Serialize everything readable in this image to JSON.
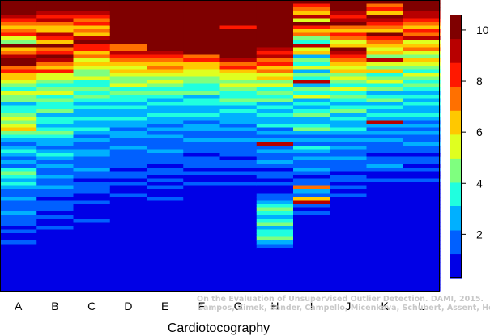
{
  "chart_data": {
    "type": "heatmap",
    "xlabel": "Cardiotocography",
    "categories": [
      "A",
      "B",
      "C",
      "D",
      "E",
      "F",
      "G",
      "H",
      "I",
      "J",
      "K",
      "L"
    ],
    "colorbar": {
      "min": 0.3,
      "max": 10.6,
      "ticks": [
        2,
        4,
        6,
        8,
        10
      ],
      "levels": [
        "#00007f",
        "#0000e6",
        "#0060ff",
        "#00b0ff",
        "#20ffdf",
        "#7fff7f",
        "#dfff20",
        "#ffc800",
        "#ff7000",
        "#ff1800",
        "#b80000",
        "#7f0000"
      ]
    },
    "n_rows": 80,
    "columns_ranks_top_to_bottom": [
      [
        10,
        10,
        10,
        10,
        9,
        8,
        7,
        6,
        7,
        8,
        5,
        4,
        10,
        6,
        7,
        9,
        10,
        10,
        7,
        8,
        6,
        6,
        5,
        4,
        3,
        5,
        4,
        4,
        2,
        3,
        3,
        4,
        5,
        4,
        5,
        6,
        4,
        3,
        2,
        1,
        2,
        3,
        2,
        1,
        2,
        1,
        3,
        4,
        3,
        2,
        3,
        2,
        1,
        1,
        2,
        1,
        1,
        1,
        2,
        1,
        1,
        1,
        0,
        1,
        0,
        0,
        1,
        0,
        0,
        0,
        0,
        0,
        0,
        0,
        0,
        0,
        0,
        0,
        0,
        0
      ],
      [
        10,
        10,
        10,
        9,
        8,
        9,
        7,
        6,
        6,
        9,
        8,
        6,
        10,
        7,
        8,
        10,
        9,
        7,
        6,
        8,
        5,
        5,
        4,
        3,
        4,
        5,
        3,
        4,
        3,
        3,
        4,
        2,
        3,
        3,
        2,
        3,
        4,
        3,
        2,
        2,
        1,
        2,
        3,
        2,
        1,
        2,
        1,
        1,
        2,
        1,
        1,
        2,
        1,
        1,
        0,
        1,
        1,
        1,
        0,
        1,
        0,
        0,
        1,
        0,
        0,
        0,
        0,
        0,
        0,
        0,
        0,
        0,
        0,
        0,
        0,
        0,
        0,
        0,
        0,
        0
      ],
      [
        10,
        10,
        10,
        9,
        8,
        7,
        8,
        6,
        7,
        6,
        9,
        10,
        8,
        8,
        6,
        7,
        5,
        6,
        5,
        4,
        4,
        5,
        3,
        3,
        4,
        3,
        4,
        3,
        2,
        3,
        2,
        2,
        3,
        2,
        2,
        3,
        2,
        1,
        2,
        1,
        1,
        2,
        2,
        1,
        1,
        1,
        2,
        1,
        1,
        0,
        1,
        1,
        1,
        0,
        0,
        1,
        0,
        0,
        0,
        0,
        1,
        0,
        0,
        0,
        0,
        0,
        0,
        0,
        0,
        0,
        0,
        0,
        0,
        0,
        0,
        0,
        0,
        0,
        0,
        0
      ],
      [
        10,
        10,
        10,
        10,
        10,
        10,
        10,
        10,
        10,
        10,
        10,
        10,
        7,
        7,
        9,
        8,
        7,
        6,
        5,
        6,
        5,
        4,
        4,
        5,
        3,
        4,
        3,
        3,
        2,
        3,
        2,
        2,
        3,
        2,
        2,
        1,
        2,
        2,
        1,
        1,
        2,
        1,
        1,
        1,
        1,
        1,
        0,
        1,
        1,
        0,
        1,
        0,
        0,
        1,
        0,
        0,
        0,
        0,
        0,
        0,
        0,
        0,
        0,
        0,
        0,
        0,
        0,
        0,
        0,
        0,
        0,
        0,
        0,
        0,
        0,
        0,
        0,
        0,
        0,
        0
      ],
      [
        10,
        10,
        10,
        10,
        10,
        10,
        10,
        10,
        10,
        10,
        10,
        10,
        10,
        10,
        9,
        8,
        7,
        6,
        7,
        6,
        5,
        4,
        5,
        4,
        3,
        4,
        3,
        2,
        3,
        2,
        2,
        3,
        2,
        2,
        1,
        2,
        1,
        2,
        1,
        1,
        1,
        2,
        1,
        1,
        1,
        0,
        1,
        1,
        0,
        1,
        0,
        1,
        0,
        0,
        1,
        0,
        0,
        0,
        0,
        0,
        0,
        0,
        0,
        0,
        0,
        0,
        0,
        0,
        0,
        0,
        0,
        0,
        0,
        0,
        0,
        0,
        0,
        0,
        0,
        0
      ],
      [
        10,
        10,
        10,
        10,
        10,
        10,
        10,
        10,
        10,
        10,
        10,
        10,
        10,
        10,
        10,
        7,
        8,
        6,
        6,
        5,
        5,
        4,
        4,
        3,
        3,
        4,
        2,
        3,
        3,
        2,
        2,
        3,
        2,
        1,
        2,
        2,
        1,
        1,
        2,
        1,
        1,
        1,
        0,
        1,
        1,
        1,
        0,
        1,
        0,
        0,
        1,
        0,
        0,
        0,
        0,
        0,
        0,
        0,
        0,
        0,
        0,
        0,
        0,
        0,
        0,
        0,
        0,
        0,
        0,
        0,
        0,
        0,
        0,
        0,
        0,
        0,
        0,
        0,
        0,
        0
      ],
      [
        10,
        10,
        10,
        10,
        10,
        10,
        10,
        8,
        10,
        10,
        10,
        10,
        10,
        10,
        10,
        10,
        9,
        7,
        8,
        6,
        5,
        5,
        4,
        5,
        4,
        3,
        3,
        4,
        3,
        2,
        3,
        2,
        2,
        2,
        1,
        2,
        1,
        1,
        2,
        1,
        1,
        1,
        1,
        0,
        1,
        1,
        0,
        1,
        0,
        0,
        1,
        0,
        0,
        0,
        0,
        0,
        0,
        0,
        0,
        0,
        0,
        0,
        0,
        0,
        0,
        0,
        0,
        0,
        0,
        0,
        0,
        0,
        0,
        0,
        0,
        0,
        0,
        0,
        0,
        0
      ],
      [
        10,
        10,
        10,
        10,
        10,
        10,
        10,
        10,
        10,
        10,
        10,
        10,
        10,
        9,
        8,
        9,
        7,
        8,
        6,
        7,
        5,
        6,
        4,
        5,
        3,
        4,
        3,
        4,
        2,
        3,
        2,
        3,
        2,
        2,
        3,
        1,
        2,
        1,
        2,
        9,
        1,
        2,
        1,
        1,
        2,
        1,
        0,
        1,
        1,
        0,
        1,
        0,
        0,
        1,
        1,
        2,
        3,
        4,
        3,
        2,
        3,
        4,
        2,
        3,
        3,
        4,
        2,
        1,
        0,
        0,
        0,
        0,
        0,
        0,
        0,
        0,
        0,
        0,
        0,
        0
      ],
      [
        10,
        8,
        7,
        6,
        9,
        5,
        10,
        8,
        6,
        7,
        4,
        3,
        9,
        5,
        6,
        2,
        4,
        3,
        5,
        2,
        4,
        3,
        9,
        2,
        4,
        3,
        5,
        2,
        3,
        2,
        3,
        4,
        2,
        2,
        3,
        4,
        2,
        1,
        2,
        1,
        3,
        2,
        1,
        2,
        1,
        1,
        2,
        1,
        0,
        1,
        1,
        7,
        2,
        1,
        6,
        9,
        1,
        0,
        1,
        0,
        0,
        0,
        0,
        0,
        0,
        0,
        0,
        0,
        0,
        0,
        0,
        0,
        0,
        0,
        0,
        0,
        0,
        0,
        0,
        0
      ],
      [
        10,
        10,
        10,
        9,
        8,
        9,
        10,
        7,
        6,
        8,
        7,
        5,
        6,
        10,
        9,
        8,
        7,
        6,
        5,
        6,
        4,
        5,
        4,
        3,
        5,
        3,
        4,
        3,
        2,
        3,
        4,
        2,
        3,
        2,
        2,
        3,
        2,
        1,
        2,
        1,
        2,
        1,
        1,
        2,
        1,
        1,
        1,
        0,
        1,
        1,
        0,
        1,
        0,
        1,
        0,
        0,
        0,
        0,
        0,
        0,
        0,
        0,
        0,
        0,
        0,
        0,
        0,
        0,
        0,
        0,
        0,
        0,
        0,
        0,
        0,
        0,
        0,
        0,
        0,
        0
      ],
      [
        10,
        7,
        8,
        6,
        10,
        9,
        8,
        7,
        6,
        10,
        8,
        7,
        6,
        5,
        6,
        4,
        9,
        5,
        4,
        6,
        3,
        4,
        5,
        3,
        4,
        2,
        3,
        4,
        2,
        3,
        2,
        3,
        2,
        9,
        2,
        1,
        2,
        1,
        2,
        1,
        1,
        1,
        0,
        1,
        1,
        2,
        1,
        0,
        0,
        1,
        0,
        0,
        0,
        0,
        0,
        0,
        0,
        0,
        0,
        0,
        0,
        0,
        0,
        0,
        0,
        0,
        0,
        0,
        0,
        0,
        0,
        0,
        0,
        0,
        0,
        0,
        0,
        0,
        0,
        0
      ],
      [
        10,
        10,
        10,
        9,
        9,
        8,
        7,
        6,
        8,
        7,
        9,
        5,
        6,
        7,
        5,
        4,
        6,
        5,
        4,
        3,
        5,
        4,
        3,
        4,
        3,
        2,
        3,
        2,
        3,
        2,
        2,
        3,
        2,
        1,
        2,
        1,
        2,
        1,
        1,
        2,
        1,
        1,
        0,
        1,
        1,
        0,
        1,
        0,
        0,
        1,
        0,
        0,
        0,
        0,
        0,
        0,
        0,
        0,
        0,
        0,
        0,
        0,
        0,
        0,
        0,
        0,
        0,
        0,
        0,
        0,
        0,
        0,
        0,
        0,
        0,
        0,
        0,
        0,
        0,
        0
      ]
    ]
  },
  "watermark": {
    "line1": "On the Evaluation of Unsupervised Outlier Detection. DAMI, 2015.",
    "line2": "Campos, Zimek, Sander, Campello, Micenková, Schubert, Assent, Houle"
  }
}
